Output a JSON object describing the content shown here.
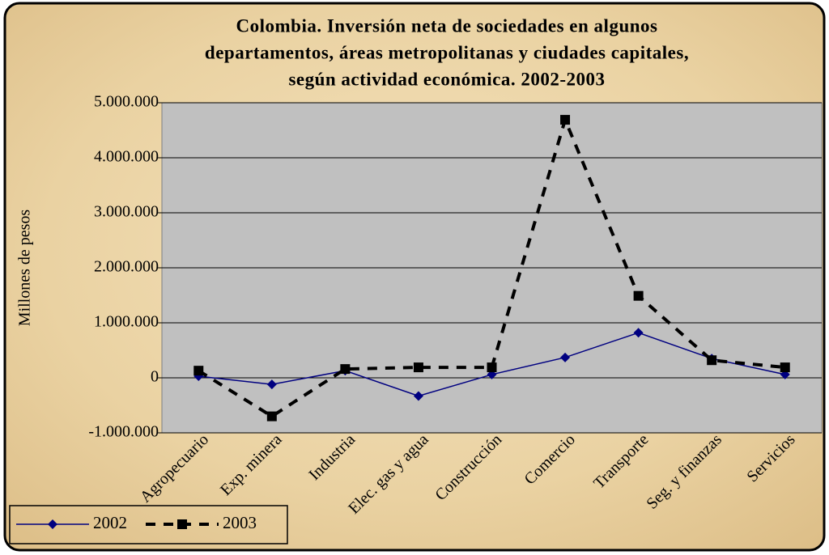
{
  "chart_data": {
    "type": "line",
    "title": [
      "Colombia. Inversión neta de sociedades en algunos",
      "departamentos, áreas metropolitanas y ciudades capitales,",
      "según actividad económica. 2002-2003"
    ],
    "y_label": "Millones de pesos",
    "categories": [
      "Agropecuario",
      "Exp. minera",
      "Industria",
      "Elec. gas y agua",
      "Construcción",
      "Comercio",
      "Transporte",
      "Seg. y finanzas",
      "Servicios"
    ],
    "series": [
      {
        "name": "2002",
        "color": "#000080",
        "dashed": false,
        "marker": "diamond",
        "values": [
          30000,
          -120000,
          130000,
          -330000,
          60000,
          370000,
          820000,
          350000,
          60000
        ]
      },
      {
        "name": "2003",
        "color": "#000000",
        "dashed": true,
        "marker": "square",
        "values": [
          130000,
          -700000,
          160000,
          190000,
          190000,
          4690000,
          1490000,
          320000,
          190000
        ]
      }
    ],
    "ylim": [
      -1000000,
      5000000
    ],
    "yticks": [
      {
        "value": -1000000,
        "label": "-1.000.000"
      },
      0,
      {
        "value": 1000000,
        "label": "1.000.000"
      },
      {
        "value": 2000000,
        "label": "2.000.000"
      },
      {
        "value": 3000000,
        "label": "3.000.000"
      },
      {
        "value": 4000000,
        "label": "4.000.000"
      },
      {
        "value": 5000000,
        "label": "5.000.000"
      }
    ],
    "grid": true,
    "legend": "bottom-left"
  }
}
